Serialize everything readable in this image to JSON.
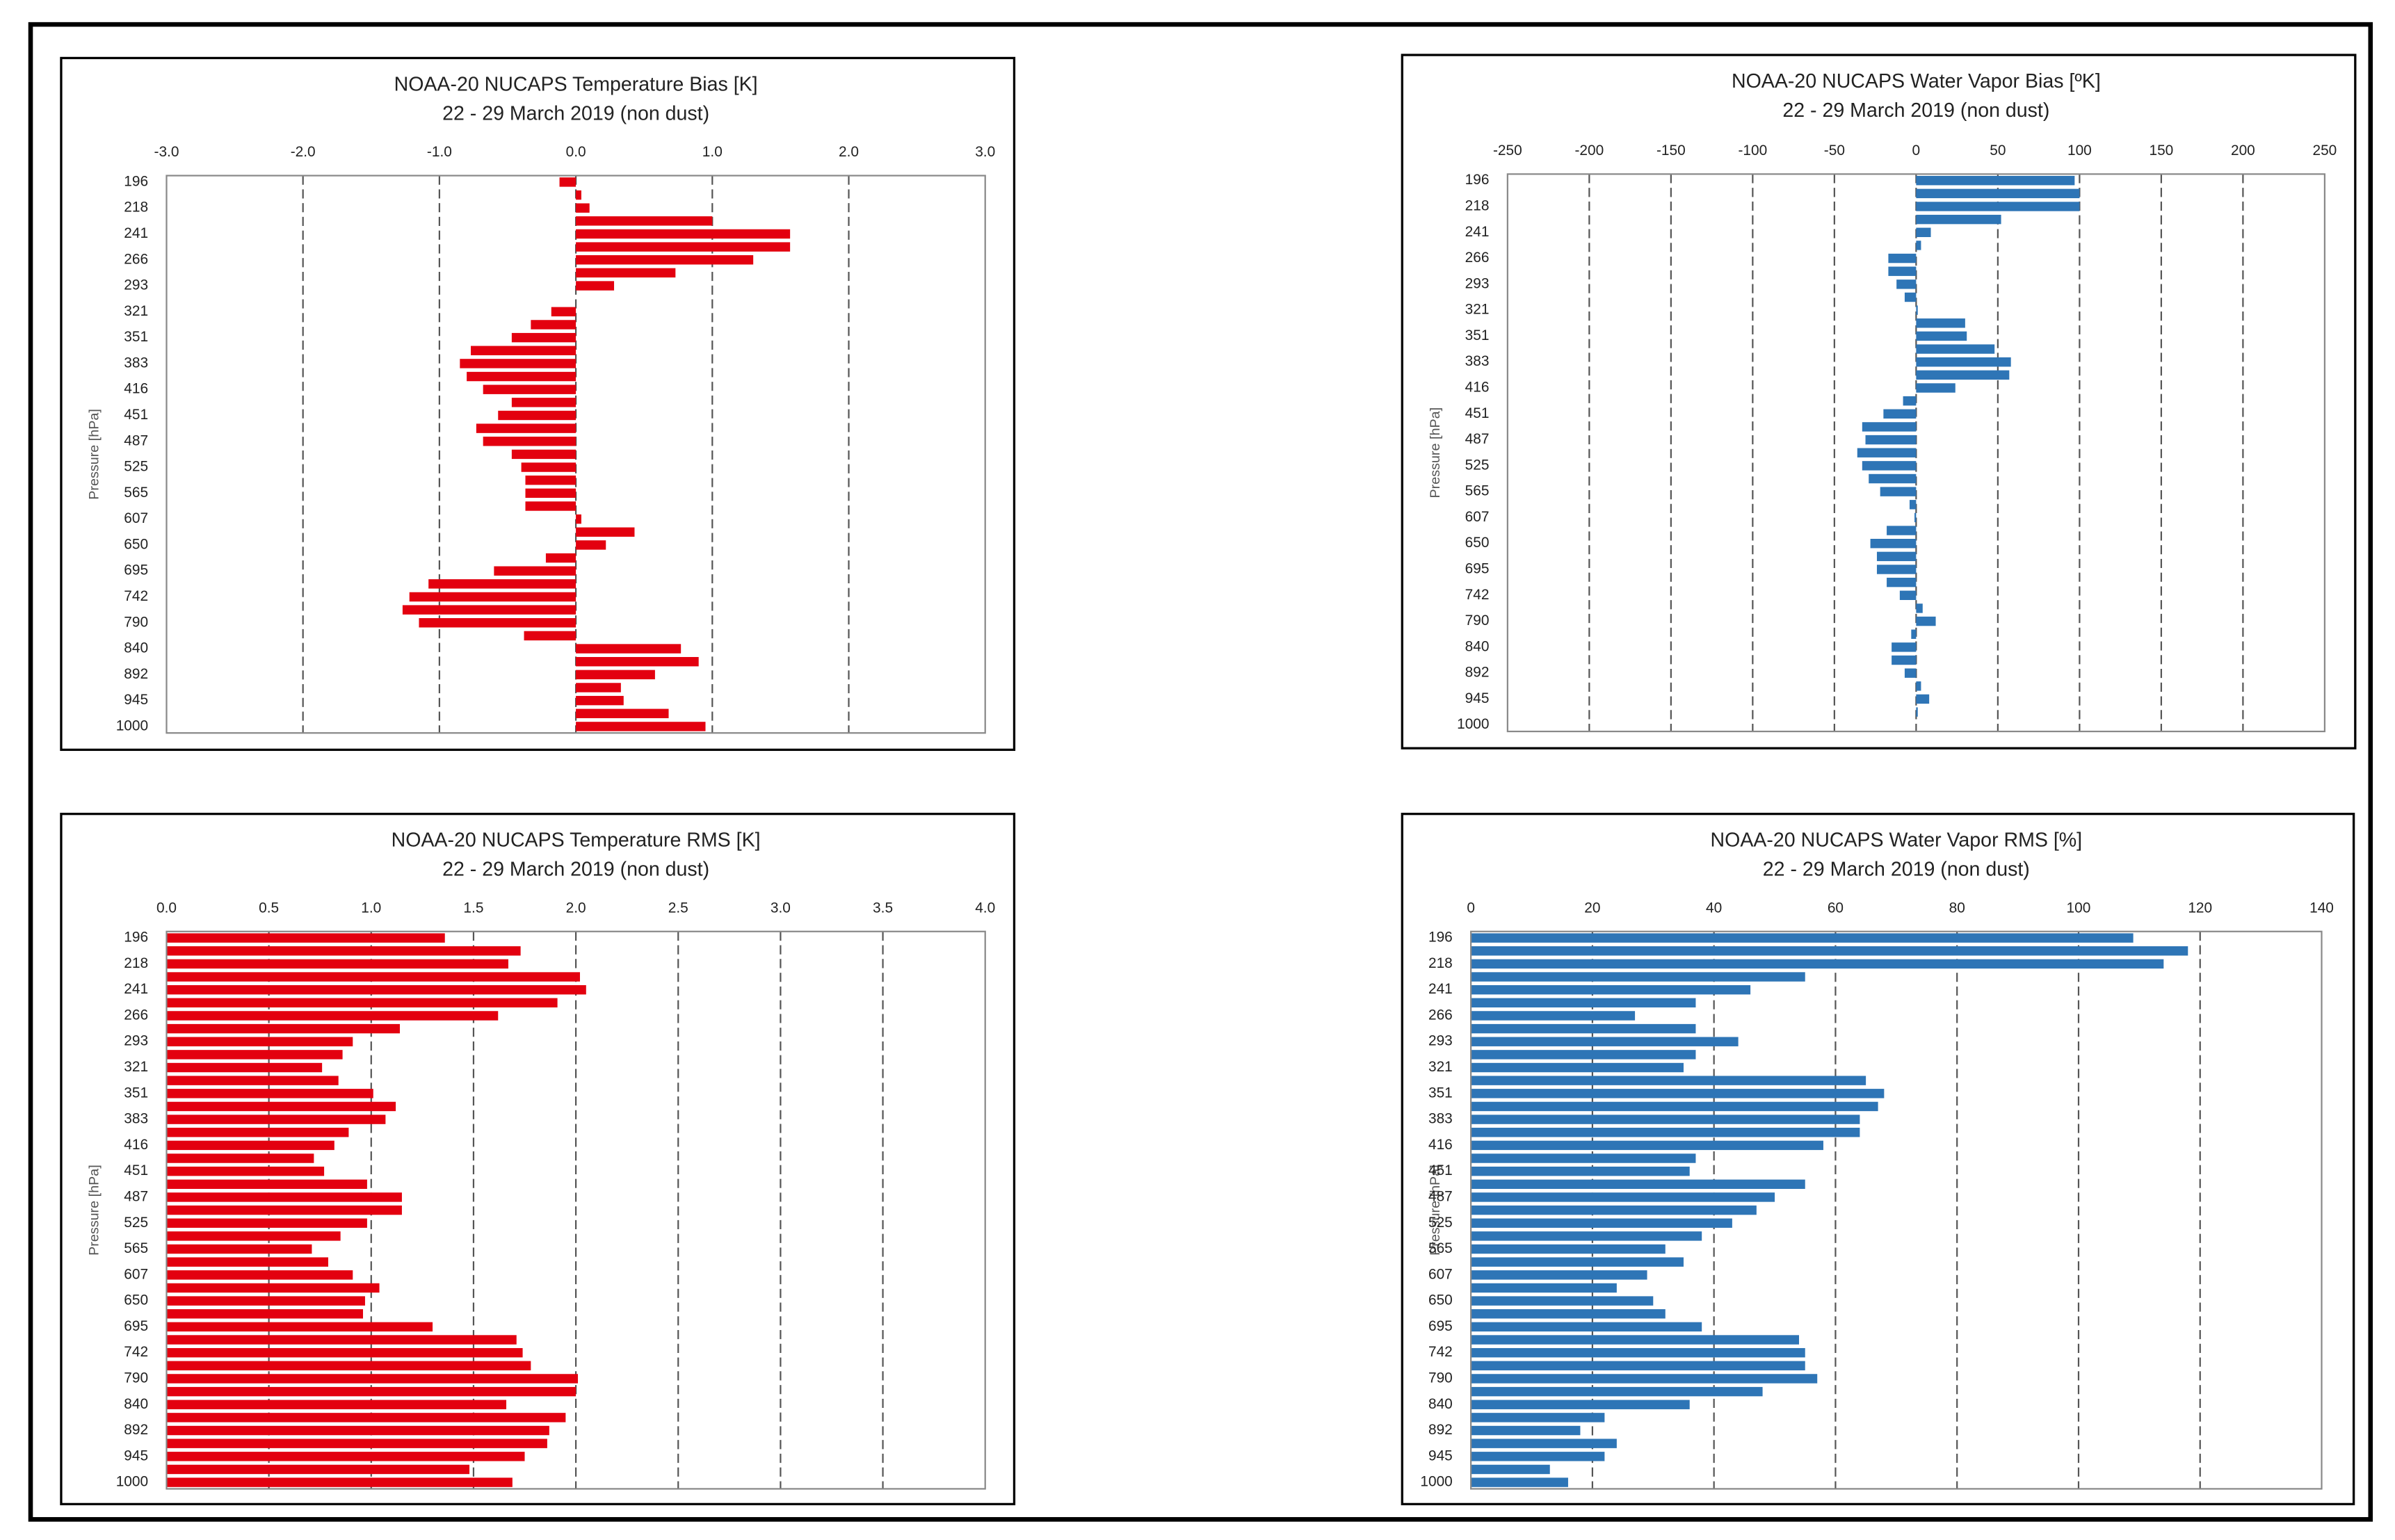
{
  "chart_data": [
    {
      "type": "bar",
      "orientation": "horizontal",
      "title": "NOAA-20 NUCAPS Temperature Bias  [K]",
      "subtitle": "22 - 29 March 2019 (non dust)",
      "y_label": "Pressure [hPa]",
      "categories": [
        "196",
        null,
        "218",
        null,
        "241",
        null,
        "266",
        null,
        "293",
        null,
        "321",
        null,
        "351",
        null,
        "383",
        null,
        "416",
        null,
        "451",
        null,
        "487",
        null,
        "525",
        null,
        "565",
        null,
        "607",
        null,
        "650",
        null,
        "695",
        null,
        "742",
        null,
        "790",
        null,
        "840",
        null,
        "892",
        null,
        "945",
        null,
        "1000"
      ],
      "values": [
        -0.12,
        0.04,
        0.1,
        1.0,
        1.57,
        1.57,
        1.3,
        0.73,
        0.28,
        0,
        -0.18,
        -0.33,
        -0.47,
        -0.77,
        -0.85,
        -0.8,
        -0.68,
        -0.47,
        -0.57,
        -0.73,
        -0.68,
        -0.47,
        -0.4,
        -0.37,
        -0.37,
        -0.37,
        0.04,
        0.43,
        0.22,
        -0.22,
        -0.6,
        -1.08,
        -1.22,
        -1.27,
        -1.15,
        -0.38,
        0.77,
        0.9,
        0.58,
        0.33,
        0.35,
        0.68,
        0.95
      ],
      "color": "#e3000f",
      "xlim": [
        -3,
        3
      ],
      "xticks": [
        {
          "value": -3,
          "label": "-3.0"
        },
        {
          "value": -2,
          "label": "-2.0"
        },
        {
          "value": -1,
          "label": "-1.0"
        },
        {
          "value": 0,
          "label": "0.0"
        },
        {
          "value": 1,
          "label": "1.0"
        },
        {
          "value": 2,
          "label": "2.0"
        },
        {
          "value": 3,
          "label": "3.0"
        }
      ],
      "grid": true
    },
    {
      "type": "bar",
      "orientation": "horizontal",
      "title": "NOAA-20 NUCAPS Water Vapor Bias [ºK]",
      "subtitle": "22 - 29 March 2019 (non dust)",
      "y_label": "Pressure [hPa]",
      "categories": [
        "196",
        null,
        "218",
        null,
        "241",
        null,
        "266",
        null,
        "293",
        null,
        "321",
        null,
        "351",
        null,
        "383",
        null,
        "416",
        null,
        "451",
        null,
        "487",
        null,
        "525",
        null,
        "565",
        null,
        "607",
        null,
        "650",
        null,
        "695",
        null,
        "742",
        null,
        "790",
        null,
        "840",
        null,
        "892",
        null,
        "945",
        null,
        "1000"
      ],
      "values": [
        97,
        100,
        100,
        52,
        9,
        3,
        -17,
        -17,
        -12,
        -7,
        1,
        30,
        31,
        48,
        58,
        57,
        24,
        -8,
        -20,
        -33,
        -31,
        -36,
        -33,
        -29,
        -22,
        -4,
        -1,
        -18,
        -28,
        -24,
        -24,
        -18,
        -10,
        4,
        12,
        -3,
        -15,
        -15,
        -7,
        3,
        8,
        1,
        0
      ],
      "color": "#2e75b6",
      "xlim": [
        -250,
        250
      ],
      "xticks": [
        -250,
        -200,
        -150,
        -100,
        -50,
        0,
        50,
        100,
        150,
        200,
        250
      ],
      "grid": true
    },
    {
      "type": "bar",
      "orientation": "horizontal",
      "title": "NOAA-20 NUCAPS Temperature RMS  [K]",
      "subtitle": "22 - 29 March 2019 (non dust)",
      "y_label": "Pressure [hPa]",
      "categories": [
        "196",
        null,
        "218",
        null,
        "241",
        null,
        "266",
        null,
        "293",
        null,
        "321",
        null,
        "351",
        null,
        "383",
        null,
        "416",
        null,
        "451",
        null,
        "487",
        null,
        "525",
        null,
        "565",
        null,
        "607",
        null,
        "650",
        null,
        "695",
        null,
        "742",
        null,
        "790",
        null,
        "840",
        null,
        "892",
        null,
        "945",
        null,
        "1000"
      ],
      "values": [
        1.36,
        1.73,
        1.67,
        2.02,
        2.05,
        1.91,
        1.62,
        1.14,
        0.91,
        0.86,
        0.76,
        0.84,
        1.01,
        1.12,
        1.07,
        0.89,
        0.82,
        0.72,
        0.77,
        0.98,
        1.15,
        1.15,
        0.98,
        0.85,
        0.71,
        0.79,
        0.91,
        1.04,
        0.97,
        0.96,
        1.3,
        1.71,
        1.74,
        1.78,
        2.01,
        2.0,
        1.66,
        1.95,
        1.87,
        1.86,
        1.75,
        1.48,
        1.69
      ],
      "color": "#e3000f",
      "xlim": [
        0,
        4
      ],
      "xticks": [
        {
          "value": 0,
          "label": "0.0"
        },
        0.5,
        {
          "value": 1,
          "label": "1.0"
        },
        1.5,
        {
          "value": 2,
          "label": "2.0"
        },
        2.5,
        {
          "value": 3,
          "label": "3.0"
        },
        3.5,
        {
          "value": 4,
          "label": "4.0"
        }
      ],
      "grid": true
    },
    {
      "type": "bar",
      "orientation": "horizontal",
      "title": "NOAA-20 NUCAPS Water Vapor RMS [%]",
      "subtitle": "22 - 29 March 2019 (non dust)",
      "y_label": "Pressure [hPa]",
      "categories": [
        "196",
        null,
        "218",
        null,
        "241",
        null,
        "266",
        null,
        "293",
        null,
        "321",
        null,
        "351",
        null,
        "383",
        null,
        "416",
        null,
        "451",
        null,
        "487",
        null,
        "525",
        null,
        "565",
        null,
        "607",
        null,
        "650",
        null,
        "695",
        null,
        "742",
        null,
        "790",
        null,
        "840",
        null,
        "892",
        null,
        "945",
        null,
        "1000"
      ],
      "values": [
        109,
        118,
        114,
        55,
        46,
        37,
        27,
        37,
        44,
        37,
        35,
        65,
        68,
        67,
        64,
        64,
        58,
        37,
        36,
        55,
        50,
        47,
        43,
        38,
        32,
        35,
        29,
        24,
        30,
        32,
        38,
        54,
        55,
        55,
        57,
        48,
        36,
        22,
        18,
        24,
        22,
        13,
        16
      ],
      "color": "#2e75b6",
      "xlim": [
        0,
        140
      ],
      "xticks": [
        0,
        20,
        40,
        60,
        80,
        100,
        120,
        140
      ],
      "grid": true
    }
  ]
}
